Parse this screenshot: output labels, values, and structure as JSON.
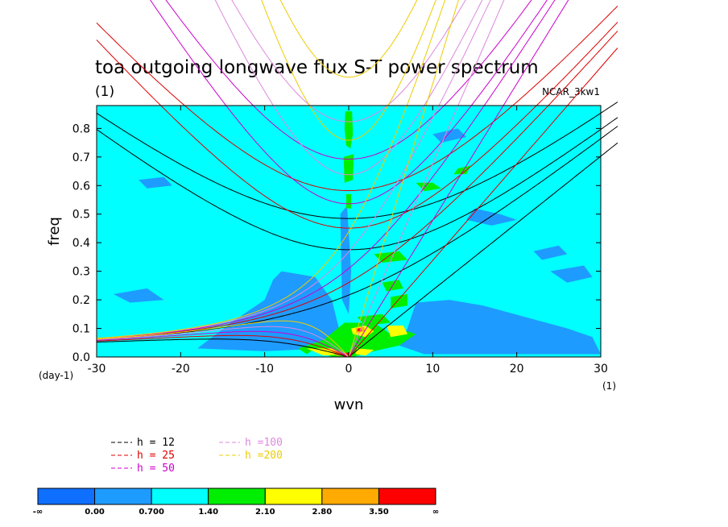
{
  "chart_data": {
    "type": "heatmap",
    "title": "toa outgoing longwave flux S-T power spectrum",
    "subtitle": "(1)",
    "model_label": "NCAR_3kw1",
    "xlabel": "wvn",
    "ylabel": "freq",
    "x_unit_label": "(1)",
    "y_unit_label": "(day-1)",
    "xlim": [
      -30,
      30
    ],
    "ylim": [
      0,
      0.88
    ],
    "x_ticks": [
      -30,
      -20,
      -10,
      0,
      10,
      20,
      30
    ],
    "x_tick_labels": [
      "-30",
      "-20",
      "-10",
      "0",
      "10",
      "20",
      "30"
    ],
    "y_ticks": [
      0,
      0.1,
      0.2,
      0.3,
      0.4,
      0.5,
      0.6,
      0.7,
      0.8
    ],
    "y_tick_labels": [
      "0.0",
      "0.1",
      "0.2",
      "0.3",
      "0.4",
      "0.5",
      "0.6",
      "0.7",
      "0.8"
    ],
    "background_level_color": "#00ffff",
    "contour_levels": [
      "-∞",
      "0.00",
      "0.700",
      "1.40",
      "2.10",
      "2.80",
      "3.50",
      "∞"
    ],
    "level_colors": [
      "#0f6fff",
      "#1e9bff",
      "#00ffff",
      "#00ee00",
      "#ffff00",
      "#ffaa00",
      "#ff0000"
    ],
    "regions": [
      {
        "level": 1,
        "points": [
          [
            -8,
            0.3
          ],
          [
            -4,
            0.28
          ],
          [
            -2,
            0.2
          ],
          [
            -1,
            0.08
          ],
          [
            -3,
            0.03
          ],
          [
            -10,
            0.02
          ],
          [
            -18,
            0.03
          ],
          [
            -14,
            0.12
          ],
          [
            -10,
            0.2
          ],
          [
            -9,
            0.27
          ]
        ]
      },
      {
        "level": 1,
        "points": [
          [
            -1,
            0.5
          ],
          [
            -0.2,
            0.53
          ],
          [
            0.3,
            0.3
          ],
          [
            0,
            0.15
          ],
          [
            -0.8,
            0.2
          ]
        ]
      },
      {
        "level": 1,
        "points": [
          [
            8,
            0.19
          ],
          [
            12,
            0.2
          ],
          [
            16,
            0.18
          ],
          [
            21,
            0.14
          ],
          [
            26,
            0.1
          ],
          [
            29,
            0.07
          ],
          [
            30,
            0.01
          ],
          [
            18,
            0.01
          ],
          [
            9,
            0.01
          ],
          [
            6,
            0.04
          ],
          [
            7,
            0.1
          ]
        ]
      },
      {
        "level": 1,
        "points": [
          [
            15,
            0.52
          ],
          [
            18,
            0.5
          ],
          [
            20,
            0.48
          ],
          [
            17,
            0.46
          ],
          [
            14,
            0.48
          ]
        ]
      },
      {
        "level": 1,
        "points": [
          [
            24,
            0.3
          ],
          [
            28,
            0.32
          ],
          [
            29,
            0.28
          ],
          [
            26,
            0.26
          ]
        ]
      },
      {
        "level": 1,
        "points": [
          [
            -28,
            0.22
          ],
          [
            -24,
            0.24
          ],
          [
            -22,
            0.2
          ],
          [
            -26,
            0.19
          ]
        ]
      },
      {
        "level": 1,
        "points": [
          [
            -25,
            0.62
          ],
          [
            -22,
            0.63
          ],
          [
            -21,
            0.6
          ],
          [
            -24,
            0.59
          ]
        ]
      },
      {
        "level": 1,
        "points": [
          [
            22,
            0.37
          ],
          [
            25,
            0.39
          ],
          [
            26,
            0.36
          ],
          [
            23,
            0.34
          ]
        ]
      },
      {
        "level": 1,
        "points": [
          [
            10,
            0.78
          ],
          [
            13,
            0.8
          ],
          [
            14,
            0.77
          ],
          [
            11,
            0.75
          ]
        ]
      },
      {
        "level": 3,
        "points": [
          [
            -0.4,
            0.86
          ],
          [
            0.4,
            0.86
          ],
          [
            0.5,
            0.78
          ],
          [
            0.2,
            0.73
          ],
          [
            -0.3,
            0.74
          ],
          [
            -0.5,
            0.8
          ]
        ]
      },
      {
        "level": 3,
        "points": [
          [
            -0.6,
            0.7
          ],
          [
            0.6,
            0.71
          ],
          [
            0.5,
            0.62
          ],
          [
            -0.5,
            0.61
          ]
        ]
      },
      {
        "level": 3,
        "points": [
          [
            -0.3,
            0.57
          ],
          [
            0.3,
            0.57
          ],
          [
            0.3,
            0.52
          ],
          [
            -0.3,
            0.52
          ]
        ]
      },
      {
        "level": 3,
        "points": [
          [
            8,
            0.61
          ],
          [
            10,
            0.61
          ],
          [
            11,
            0.59
          ],
          [
            9,
            0.58
          ]
        ]
      },
      {
        "level": 3,
        "points": [
          [
            13,
            0.66
          ],
          [
            14.5,
            0.67
          ],
          [
            14,
            0.64
          ],
          [
            12.5,
            0.64
          ]
        ]
      },
      {
        "level": 3,
        "points": [
          [
            3,
            0.36
          ],
          [
            6,
            0.37
          ],
          [
            7,
            0.34
          ],
          [
            4,
            0.33
          ]
        ]
      },
      {
        "level": 3,
        "points": [
          [
            4,
            0.26
          ],
          [
            6,
            0.27
          ],
          [
            6.5,
            0.24
          ],
          [
            4.5,
            0.23
          ]
        ]
      },
      {
        "level": 3,
        "points": [
          [
            5,
            0.21
          ],
          [
            7,
            0.22
          ],
          [
            7,
            0.18
          ],
          [
            5,
            0.17
          ]
        ]
      },
      {
        "level": 3,
        "points": [
          [
            1,
            0.14
          ],
          [
            4,
            0.15
          ],
          [
            5,
            0.12
          ],
          [
            2,
            0.11
          ]
        ]
      },
      {
        "level": 3,
        "points": [
          [
            -0.5,
            0.12
          ],
          [
            3,
            0.12
          ],
          [
            5,
            0.08
          ],
          [
            7,
            0.09
          ],
          [
            8,
            0.08
          ],
          [
            6,
            0.04
          ],
          [
            3,
            0.02
          ],
          [
            0.5,
            0
          ],
          [
            -2,
            0
          ],
          [
            -4,
            0.03
          ],
          [
            -5,
            0.01
          ],
          [
            -6,
            0.03
          ],
          [
            -3,
            0.06
          ]
        ]
      },
      {
        "level": 4,
        "points": [
          [
            0.3,
            0.1
          ],
          [
            2,
            0.11
          ],
          [
            3,
            0.09
          ],
          [
            2,
            0.07
          ],
          [
            0.5,
            0.08
          ]
        ]
      },
      {
        "level": 4,
        "points": [
          [
            4.5,
            0.11
          ],
          [
            6.5,
            0.11
          ],
          [
            7,
            0.08
          ],
          [
            5,
            0.07
          ]
        ]
      },
      {
        "level": 4,
        "points": [
          [
            -5,
            0.03
          ],
          [
            -2,
            0.03
          ],
          [
            -0.5,
            0.01
          ],
          [
            -3,
            0.005
          ]
        ]
      },
      {
        "level": 4,
        "points": [
          [
            1,
            0.03
          ],
          [
            3,
            0.025
          ],
          [
            2,
            0.005
          ],
          [
            0.8,
            0.01
          ]
        ]
      },
      {
        "level": 5,
        "points": [
          [
            0.8,
            0.1
          ],
          [
            1.8,
            0.105
          ],
          [
            2,
            0.09
          ],
          [
            1,
            0.085
          ]
        ]
      },
      {
        "level": 5,
        "points": [
          [
            -2,
            0.02
          ],
          [
            -1,
            0.02
          ],
          [
            -0.5,
            0.005
          ],
          [
            -1.5,
            0.005
          ]
        ]
      },
      {
        "level": 6,
        "points": [
          [
            1,
            0.1
          ],
          [
            1.5,
            0.1
          ],
          [
            1.5,
            0.09
          ],
          [
            1,
            0.09
          ]
        ]
      },
      {
        "level": 6,
        "points": [
          [
            -0.6,
            0.015
          ],
          [
            0.3,
            0.015
          ],
          [
            0.3,
            0
          ],
          [
            -0.6,
            0
          ]
        ]
      }
    ],
    "legend": [
      {
        "label": "h = 12",
        "h": 12,
        "color": "#000000"
      },
      {
        "label": "h = 25",
        "h": 25,
        "color": "#dd0000"
      },
      {
        "label": "h = 50",
        "h": 50,
        "color": "#cc00cc"
      },
      {
        "label": "h =100",
        "h": 100,
        "color": "#dd88dd"
      },
      {
        "label": "h =200",
        "h": 200,
        "color": "#eecc00"
      }
    ]
  }
}
